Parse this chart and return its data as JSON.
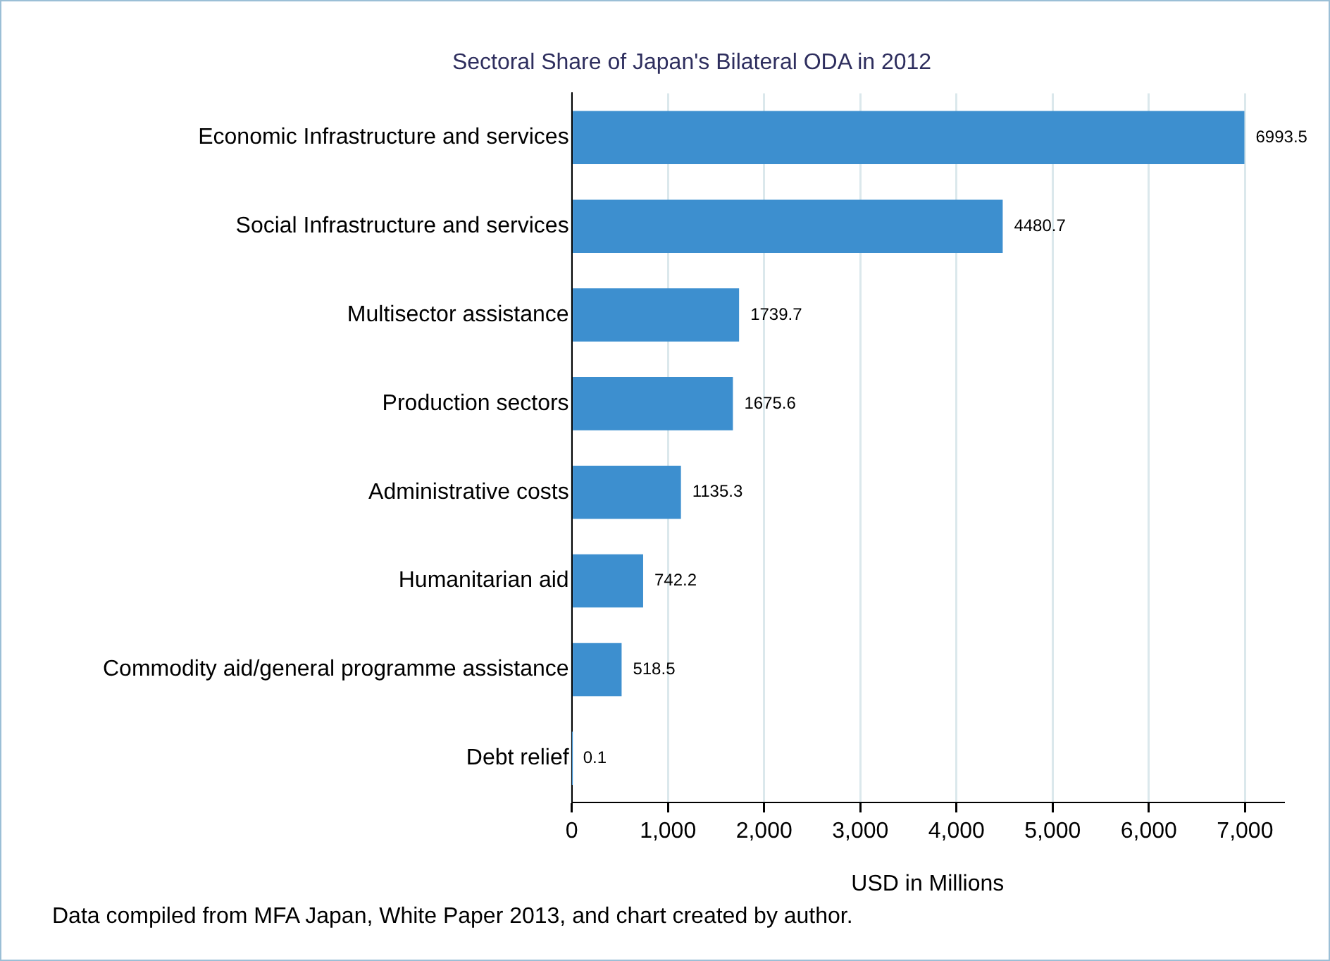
{
  "chart_data": {
    "type": "bar",
    "orientation": "horizontal",
    "title": "Sectoral Share of Japan's Bilateral ODA in 2012",
    "categories": [
      "Economic Infrastructure and services",
      "Social Infrastructure and services",
      "Multisector assistance",
      "Production sectors",
      "Administrative costs",
      "Humanitarian aid",
      "Commodity aid/general programme assistance",
      "Debt relief"
    ],
    "values": [
      6993.5,
      4480.7,
      1739.7,
      1675.6,
      1135.3,
      742.2,
      518.5,
      0.1
    ],
    "color": "#3d8fcf",
    "xlim": [
      0,
      7400
    ],
    "xticks": [
      {
        "value": 0,
        "label": "0"
      },
      {
        "value": 1000,
        "label": "1,000"
      },
      {
        "value": 2000,
        "label": "2,000"
      },
      {
        "value": 3000,
        "label": "3,000"
      },
      {
        "value": 4000,
        "label": "4,000"
      },
      {
        "value": 5000,
        "label": "5,000"
      },
      {
        "value": 6000,
        "label": "6,000"
      },
      {
        "value": 7000,
        "label": "7,000"
      }
    ],
    "xlabel": "USD in Millions",
    "grid": "x",
    "legend": false,
    "data_labels": true,
    "annotations": [
      "Data compiled from MFA Japan, White Paper 2013, and chart created by author."
    ]
  }
}
